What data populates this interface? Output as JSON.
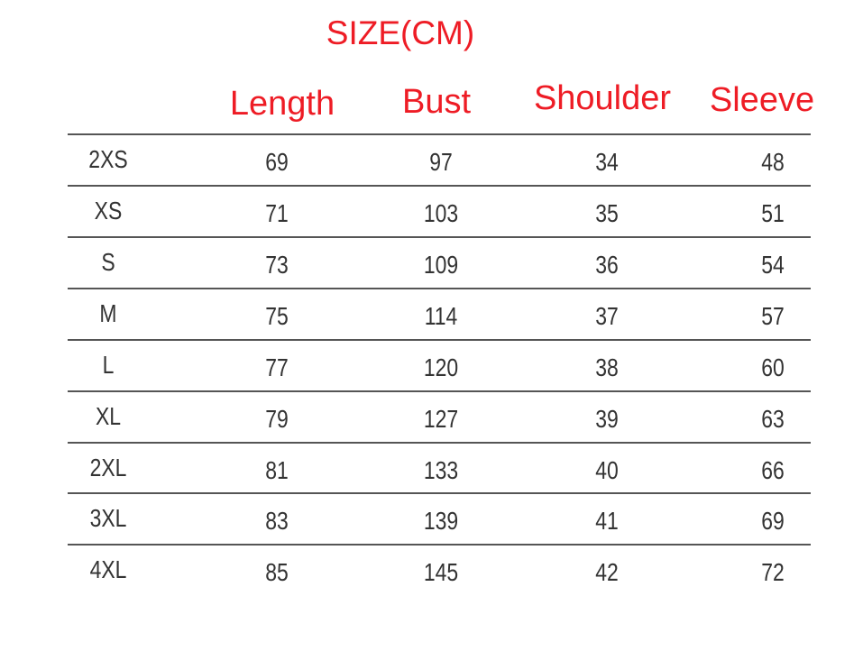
{
  "title": "SIZE(CM)",
  "headers": [
    "Length",
    "Bust",
    "Shoulder",
    "Sleeve"
  ],
  "accent_color": "#ee1c25",
  "rows": [
    {
      "size": "2XS",
      "values": [
        "69",
        "97",
        "34",
        "48"
      ]
    },
    {
      "size": "XS",
      "values": [
        "71",
        "103",
        "35",
        "51"
      ]
    },
    {
      "size": "S",
      "values": [
        "73",
        "109",
        "36",
        "54"
      ]
    },
    {
      "size": "M",
      "values": [
        "75",
        "114",
        "37",
        "57"
      ]
    },
    {
      "size": "L",
      "values": [
        "77",
        "120",
        "38",
        "60"
      ]
    },
    {
      "size": "XL",
      "values": [
        "79",
        "127",
        "39",
        "63"
      ]
    },
    {
      "size": "2XL",
      "values": [
        "81",
        "133",
        "40",
        "66"
      ]
    },
    {
      "size": "3XL",
      "values": [
        "83",
        "139",
        "41",
        "69"
      ]
    },
    {
      "size": "4XL",
      "values": [
        "85",
        "145",
        "42",
        "72"
      ]
    }
  ]
}
